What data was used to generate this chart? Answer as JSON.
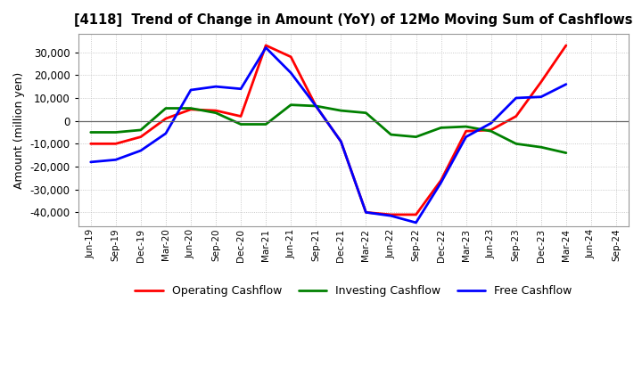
{
  "title": "[4118]  Trend of Change in Amount (YoY) of 12Mo Moving Sum of Cashflows",
  "ylabel": "Amount (million yen)",
  "x_labels": [
    "Jun-19",
    "Sep-19",
    "Dec-19",
    "Mar-20",
    "Jun-20",
    "Sep-20",
    "Dec-20",
    "Mar-21",
    "Jun-21",
    "Sep-21",
    "Dec-21",
    "Mar-22",
    "Jun-22",
    "Sep-22",
    "Dec-22",
    "Mar-23",
    "Jun-23",
    "Sep-23",
    "Dec-23",
    "Mar-24",
    "Jun-24",
    "Sep-24"
  ],
  "operating": [
    -10000,
    -10000,
    -7000,
    1000,
    5000,
    4500,
    2000,
    33000,
    28000,
    6500,
    -9000,
    -40000,
    -41000,
    -41000,
    -26000,
    -4500,
    -4000,
    2000,
    17000,
    33000,
    null,
    null
  ],
  "investing": [
    -5000,
    -5000,
    -4000,
    5500,
    5500,
    3500,
    -1500,
    -1500,
    7000,
    6500,
    4500,
    3500,
    -6000,
    -7000,
    -3000,
    -2500,
    -4500,
    -10000,
    -11500,
    -14000,
    null,
    null
  ],
  "free": [
    -18000,
    -17000,
    -13000,
    -5500,
    13500,
    15000,
    14000,
    32000,
    21000,
    6500,
    -9000,
    -40000,
    -41500,
    -44500,
    -27000,
    -7000,
    -1000,
    10000,
    10500,
    16000,
    null,
    null
  ],
  "operating_color": "#ff0000",
  "investing_color": "#008000",
  "free_color": "#0000ff",
  "ylim": [
    -46000,
    38000
  ],
  "yticks": [
    -40000,
    -30000,
    -20000,
    -10000,
    0,
    10000,
    20000,
    30000
  ],
  "background_color": "#ffffff",
  "grid_color": "#b0b0b0"
}
